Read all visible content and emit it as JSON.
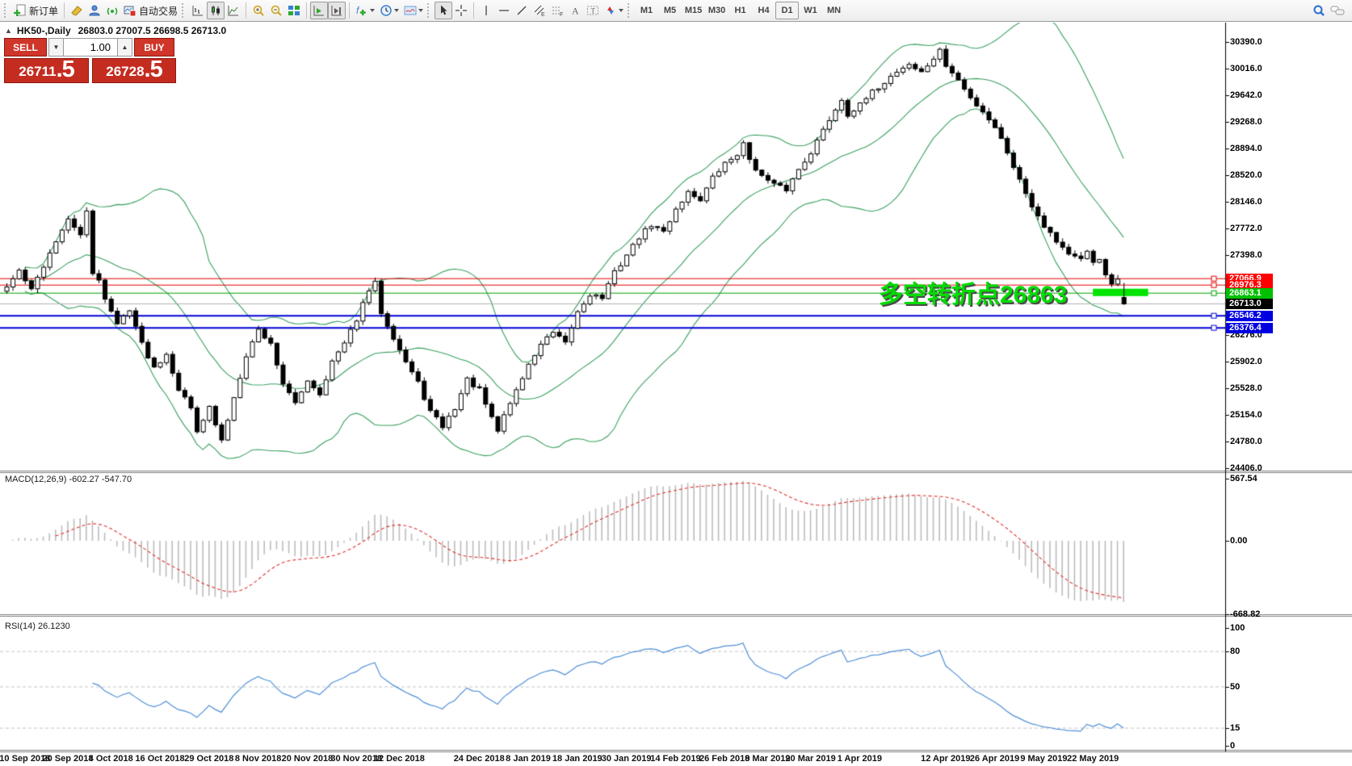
{
  "toolbar": {
    "new_order_label": "新订单",
    "autotrading_label": "自动交易",
    "timeframes": [
      "M1",
      "M5",
      "M15",
      "M30",
      "H1",
      "H4",
      "D1",
      "W1",
      "MN"
    ],
    "active_timeframe": "D1"
  },
  "chart": {
    "collapse_arrow": "▲",
    "symbol_period": "HK50-,Daily",
    "ohlc_line": "26803.0 27007.5 26698.5 26713.0",
    "one_click": {
      "sell_label": "SELL",
      "buy_label": "BUY",
      "volume": "1.00",
      "sell_price_main": "26711",
      "sell_price_big": ".5",
      "buy_price_main": "26728",
      "buy_price_big": ".5"
    },
    "annotation": {
      "text": "多空转折点26863",
      "color": "#00dc00"
    }
  },
  "chart_data": {
    "type": "candlestick",
    "symbol": "HK50",
    "period": "Daily",
    "bars": 183,
    "last_bar_ohlc": {
      "open": 26803.0,
      "high": 27007.5,
      "low": 26698.5,
      "close": 26713.0
    },
    "close_anchors": [
      [
        0,
        26950
      ],
      [
        2,
        27180
      ],
      [
        4,
        26900
      ],
      [
        6,
        27250
      ],
      [
        8,
        27600
      ],
      [
        10,
        27880
      ],
      [
        12,
        27700
      ],
      [
        13,
        27990
      ],
      [
        14,
        27120
      ],
      [
        15,
        27060
      ],
      [
        16,
        26800
      ],
      [
        18,
        26420
      ],
      [
        20,
        26650
      ],
      [
        22,
        26150
      ],
      [
        24,
        25820
      ],
      [
        26,
        26020
      ],
      [
        28,
        25520
      ],
      [
        30,
        25250
      ],
      [
        31,
        24950
      ],
      [
        33,
        25250
      ],
      [
        35,
        24780
      ],
      [
        37,
        25400
      ],
      [
        39,
        26000
      ],
      [
        41,
        26350
      ],
      [
        43,
        26150
      ],
      [
        45,
        25600
      ],
      [
        47,
        25300
      ],
      [
        49,
        25650
      ],
      [
        51,
        25450
      ],
      [
        53,
        25900
      ],
      [
        55,
        26150
      ],
      [
        57,
        26500
      ],
      [
        59,
        26900
      ],
      [
        60,
        27000
      ],
      [
        61,
        26600
      ],
      [
        63,
        26250
      ],
      [
        65,
        25900
      ],
      [
        67,
        25600
      ],
      [
        69,
        25200
      ],
      [
        71,
        24990
      ],
      [
        73,
        25250
      ],
      [
        75,
        25650
      ],
      [
        77,
        25500
      ],
      [
        79,
        25100
      ],
      [
        80,
        24930
      ],
      [
        81,
        25150
      ],
      [
        83,
        25500
      ],
      [
        85,
        25850
      ],
      [
        87,
        26150
      ],
      [
        89,
        26300
      ],
      [
        91,
        26150
      ],
      [
        93,
        26600
      ],
      [
        95,
        26850
      ],
      [
        97,
        26800
      ],
      [
        99,
        27150
      ],
      [
        101,
        27400
      ],
      [
        103,
        27650
      ],
      [
        105,
        27820
      ],
      [
        107,
        27720
      ],
      [
        109,
        28050
      ],
      [
        111,
        28280
      ],
      [
        113,
        28180
      ],
      [
        115,
        28480
      ],
      [
        117,
        28680
      ],
      [
        119,
        28820
      ],
      [
        120,
        28950
      ],
      [
        121,
        28750
      ],
      [
        123,
        28500
      ],
      [
        125,
        28380
      ],
      [
        127,
        28320
      ],
      [
        129,
        28600
      ],
      [
        131,
        28850
      ],
      [
        133,
        29150
      ],
      [
        135,
        29450
      ],
      [
        136,
        29580
      ],
      [
        137,
        29380
      ],
      [
        139,
        29500
      ],
      [
        141,
        29680
      ],
      [
        143,
        29830
      ],
      [
        145,
        29980
      ],
      [
        147,
        30080
      ],
      [
        149,
        29960
      ],
      [
        151,
        30160
      ],
      [
        152,
        30260
      ],
      [
        153,
        30060
      ],
      [
        155,
        29850
      ],
      [
        157,
        29600
      ],
      [
        159,
        29420
      ],
      [
        161,
        29200
      ],
      [
        163,
        28850
      ],
      [
        165,
        28450
      ],
      [
        167,
        28100
      ],
      [
        169,
        27820
      ],
      [
        171,
        27600
      ],
      [
        173,
        27420
      ],
      [
        175,
        27320
      ],
      [
        176,
        27430
      ],
      [
        177,
        27300
      ],
      [
        178,
        27360
      ],
      [
        179,
        27120
      ],
      [
        180,
        26990
      ],
      [
        181,
        27060
      ],
      [
        182,
        26713
      ]
    ],
    "bollinger": {
      "period": 20,
      "deviation": 2,
      "color": "#3aa060"
    },
    "price_ticks": [
      "30390.0",
      "30016.0",
      "29642.0",
      "29268.0",
      "28894.0",
      "28520.0",
      "28146.0",
      "27772.0",
      "27398.0",
      "26276.0",
      "25902.0",
      "25528.0",
      "25154.0",
      "24780.0",
      "24406.0"
    ],
    "hlines": [
      {
        "price": 27066.9,
        "label": "27066.9",
        "color": "#e60000",
        "chip": "#ff0000",
        "width": 1
      },
      {
        "price": 26976.3,
        "label": "26976.3",
        "color": "#e60000",
        "chip": "#ff0000",
        "width": 1
      },
      {
        "price": 26863.1,
        "label": "26863.1",
        "color": "#00a000",
        "chip": "#00c000",
        "width": 1
      },
      {
        "price": 26546.2,
        "label": "26546.2",
        "color": "#0000d8",
        "chip": "#0000e0",
        "width": 2
      },
      {
        "price": 26376.4,
        "label": "26376.4",
        "color": "#0000d8",
        "chip": "#0000e0",
        "width": 2
      }
    ],
    "current_price": {
      "price": 26713.0,
      "label": "26713.0",
      "line_color": "#b0b0b0",
      "chip": "#000000"
    },
    "highlight_bar": {
      "bar_from": 177,
      "bar_to": 186,
      "price_top": 26925,
      "price_bottom": 26822,
      "color": "#00e400"
    },
    "date_ticks": [
      {
        "label": "10 Sep 2018",
        "bar": 3
      },
      {
        "label": "20 Sep 2018",
        "bar": 10
      },
      {
        "label": "4 Oct 2018",
        "bar": 17
      },
      {
        "label": "16 Oct 2018",
        "bar": 25
      },
      {
        "label": "29 Oct 2018",
        "bar": 33
      },
      {
        "label": "8 Nov 2018",
        "bar": 41
      },
      {
        "label": "20 Nov 2018",
        "bar": 49
      },
      {
        "label": "30 Nov 2018",
        "bar": 57
      },
      {
        "label": "12 Dec 2018",
        "bar": 64
      },
      {
        "label": "24 Dec 2018",
        "bar": 77
      },
      {
        "label": "8 Jan 2019",
        "bar": 85
      },
      {
        "label": "18 Jan 2019",
        "bar": 93
      },
      {
        "label": "30 Jan 2019",
        "bar": 101
      },
      {
        "label": "14 Feb 2019",
        "bar": 109
      },
      {
        "label": "26 Feb 2019",
        "bar": 117
      },
      {
        "label": "8 Mar 2019",
        "bar": 124
      },
      {
        "label": "20 Mar 2019",
        "bar": 131
      },
      {
        "label": "1 Apr 2019",
        "bar": 139
      },
      {
        "label": "12 Apr 2019",
        "bar": 153
      },
      {
        "label": "26 Apr 2019",
        "bar": 161
      },
      {
        "label": "9 May 2019",
        "bar": 169
      },
      {
        "label": "22 May 2019",
        "bar": 177
      }
    ],
    "indicators": {
      "macd": {
        "label": "MACD(12,26,9) -602.27 -547.70",
        "params": [
          12,
          26,
          9
        ],
        "main_value": -602.27,
        "signal_value": -547.7,
        "scale": [
          "567.54",
          "0.00",
          "-668.82"
        ],
        "hist_color": "#bdbdbd",
        "signal_color": "#e03030"
      },
      "rsi": {
        "label": "RSI(14) 26.1230",
        "period": 14,
        "value": 26.123,
        "levels": [
          "100",
          "80",
          "50",
          "15",
          "0"
        ],
        "dashed_levels": [
          80,
          50,
          15
        ],
        "line_color": "#5090d8"
      }
    }
  }
}
